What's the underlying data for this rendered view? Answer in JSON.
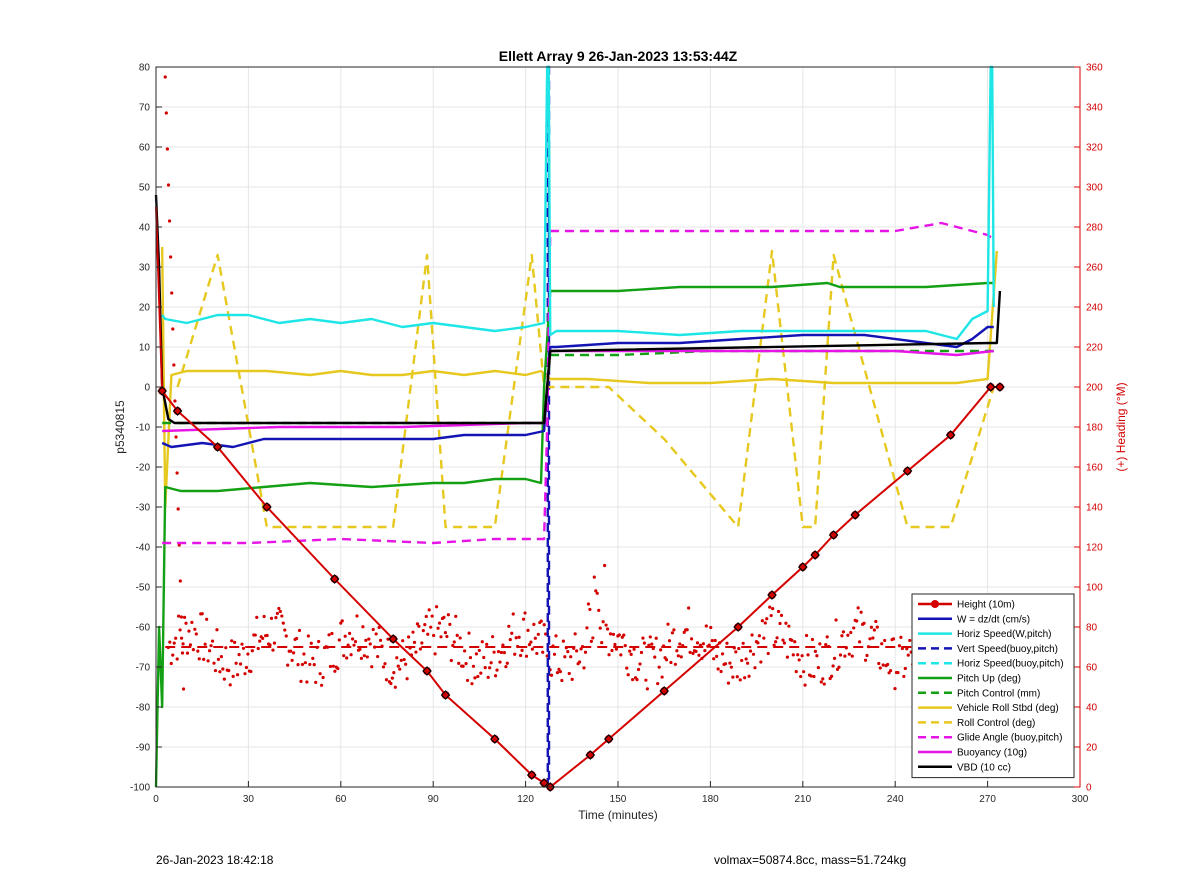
{
  "chart_data": {
    "type": "line",
    "title": "Ellett Array 9 26-Jan-2023 13:53:44Z",
    "xlabel": "Time (minutes)",
    "ylabel": "p5340815",
    "y2label": "(+) Heading (°M)",
    "xlim": [
      0,
      300
    ],
    "ylim": [
      -100,
      80
    ],
    "y2lim": [
      0,
      360
    ],
    "xticks": [
      0,
      30,
      60,
      90,
      120,
      150,
      180,
      210,
      240,
      270,
      300
    ],
    "yticks": [
      -100,
      -90,
      -80,
      -70,
      -60,
      -50,
      -40,
      -30,
      -20,
      -10,
      0,
      10,
      20,
      30,
      40,
      50,
      60,
      70,
      80
    ],
    "y2ticks": [
      0,
      20,
      40,
      60,
      80,
      100,
      120,
      140,
      160,
      180,
      200,
      220,
      240,
      260,
      280,
      300,
      320,
      340,
      360
    ],
    "grid": true,
    "legend_position": "bottom-right",
    "colors": {
      "height": "#d40000",
      "w": "#1414b4",
      "horiz": "#1ee6e6",
      "pitch": "#14a014",
      "roll": "#e6c81e",
      "glide": "#e614e6",
      "buoyancy": "#e614e6",
      "vbd": "#000000",
      "heading_axis": "#d40000"
    },
    "series": [
      {
        "name": "Height (10m)",
        "style": "solid-circle",
        "color_key": "height",
        "x": [
          0,
          2,
          7,
          20,
          36,
          58,
          77,
          88,
          94,
          110,
          122,
          126,
          128,
          141,
          147,
          165,
          189,
          200,
          210,
          214,
          220,
          227,
          244,
          258,
          271,
          274
        ],
        "y": [
          45,
          -1,
          -6,
          -15,
          -30,
          -48,
          -63,
          -71,
          -77,
          -88,
          -97,
          -99,
          -100,
          -92,
          -88,
          -76,
          -60,
          -52,
          -45,
          -42,
          -37,
          -32,
          -21,
          -12,
          0,
          0
        ]
      },
      {
        "name": "W = dz/dt (cm/s)",
        "style": "solid",
        "color_key": "w",
        "x": [
          2,
          5,
          15,
          25,
          35,
          45,
          60,
          75,
          90,
          100,
          110,
          120,
          126,
          128,
          130,
          150,
          170,
          190,
          210,
          230,
          250,
          260,
          265,
          270,
          272
        ],
        "y": [
          -14,
          -15,
          -14,
          -15,
          -13,
          -13,
          -13,
          -13,
          -13,
          -12,
          -12,
          -12,
          -11,
          10,
          10,
          11,
          11,
          12,
          13,
          13,
          11,
          10,
          12,
          15,
          15
        ]
      },
      {
        "name": "Horiz Speed(W,pitch)",
        "style": "solid",
        "color_key": "horiz",
        "x": [
          2,
          3,
          10,
          20,
          30,
          40,
          50,
          60,
          70,
          80,
          90,
          100,
          110,
          120,
          126,
          127,
          127.5,
          128,
          130,
          150,
          170,
          190,
          210,
          230,
          250,
          260,
          265,
          270,
          271,
          271.5,
          272
        ],
        "y": [
          18,
          17,
          16,
          18,
          18,
          16,
          17,
          16,
          17,
          15,
          16,
          15,
          14,
          15,
          16,
          80,
          80,
          13,
          14,
          14,
          13,
          14,
          14,
          14,
          14,
          12,
          17,
          19,
          80,
          80,
          20
        ]
      },
      {
        "name": "Vert Speed(buoy,pitch)",
        "style": "dashed",
        "color_key": "w",
        "x": [
          127.2,
          127.2,
          127.6,
          127.6
        ],
        "y": [
          -100,
          80,
          80,
          -100
        ]
      },
      {
        "name": "Horiz Speed(buoy,pitch)",
        "style": "dashed",
        "color_key": "horiz",
        "x": [
          127,
          127.3
        ],
        "y": [
          80,
          80
        ]
      },
      {
        "name": "Pitch Up (deg)",
        "style": "solid",
        "color_key": "pitch",
        "x": [
          0,
          1,
          2,
          3,
          8,
          20,
          35,
          50,
          70,
          90,
          100,
          110,
          120,
          125,
          126,
          128,
          129,
          150,
          170,
          200,
          218,
          222,
          230,
          250,
          270,
          272
        ],
        "y": [
          -100,
          -60,
          -80,
          -25,
          -26,
          -26,
          -25,
          -24,
          -25,
          -24,
          -24,
          -23,
          -23,
          -24,
          0,
          24,
          24,
          24,
          25,
          25,
          26,
          25,
          25,
          25,
          26,
          26
        ]
      },
      {
        "name": "Pitch Control (mm)",
        "style": "dashed",
        "color_key": "pitch",
        "x": [
          2,
          126,
          128,
          150,
          180,
          200,
          220,
          260,
          272
        ],
        "y": [
          -9,
          -9,
          8,
          8,
          9,
          9,
          9,
          9,
          9
        ]
      },
      {
        "name": "Vehicle Roll Stbd (deg)",
        "style": "solid",
        "color_key": "roll",
        "x": [
          2,
          3,
          5,
          10,
          20,
          36,
          50,
          60,
          70,
          80,
          90,
          100,
          110,
          120,
          125,
          128,
          140,
          160,
          180,
          200,
          220,
          240,
          260,
          270,
          273
        ],
        "y": [
          35,
          -30,
          3,
          4,
          4,
          4,
          3,
          4,
          3,
          3,
          4,
          3,
          4,
          3,
          4,
          2,
          2,
          1,
          1,
          2,
          1,
          1,
          1,
          2,
          34
        ]
      },
      {
        "name": "Roll Control (deg)",
        "style": "dashed",
        "color_key": "roll",
        "x": [
          7,
          20,
          36,
          58,
          77,
          88,
          94,
          110,
          122,
          126,
          147,
          165,
          189,
          200,
          210,
          214,
          220,
          244,
          258,
          272
        ],
        "y": [
          0,
          33,
          -35,
          -35,
          -35,
          33,
          -35,
          -35,
          33,
          0,
          0,
          -13,
          -35,
          34,
          -35,
          -35,
          33,
          -35,
          -35,
          0
        ]
      },
      {
        "name": "Glide Angle (buoy,pitch)",
        "style": "dashed",
        "color_key": "glide",
        "x": [
          2,
          10,
          30,
          60,
          90,
          110,
          120,
          126,
          127,
          128,
          150,
          180,
          210,
          240,
          255,
          270,
          272
        ],
        "y": [
          -39,
          -39,
          -39,
          -38,
          -39,
          -38,
          -38,
          -38,
          -10,
          39,
          39,
          39,
          39,
          39,
          41,
          38,
          37
        ]
      },
      {
        "name": "Buoyancy (10g)",
        "style": "solid",
        "color_key": "buoyancy",
        "x": [
          2,
          40,
          80,
          120,
          126,
          128,
          150,
          200,
          240,
          260,
          272
        ],
        "y": [
          -11,
          -10,
          -10,
          -9,
          -9,
          9,
          9,
          9,
          9,
          8,
          9
        ]
      },
      {
        "name": "VBD (10 cc)",
        "style": "solid",
        "color_key": "vbd",
        "x": [
          0,
          1,
          2,
          4,
          6,
          126,
          128,
          271,
          273,
          274
        ],
        "y": [
          48,
          30,
          0,
          -8,
          -9,
          -9,
          9,
          11,
          11,
          24
        ]
      }
    ],
    "heading": {
      "name": "Heading scatter",
      "mean_line_y2": 70
    }
  },
  "footer": {
    "timestamp": "26-Jan-2023 18:42:18",
    "summary": "volmax=50874.8cc, mass=51.724kg"
  }
}
